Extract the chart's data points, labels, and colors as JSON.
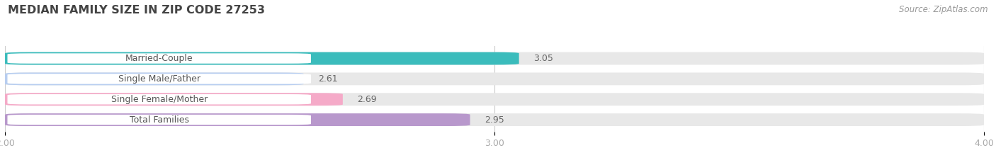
{
  "title": "MEDIAN FAMILY SIZE IN ZIP CODE 27253",
  "source": "Source: ZipAtlas.com",
  "categories": [
    "Married-Couple",
    "Single Male/Father",
    "Single Female/Mother",
    "Total Families"
  ],
  "values": [
    3.05,
    2.61,
    2.69,
    2.95
  ],
  "bar_colors": [
    "#3bbcbc",
    "#b8cef0",
    "#f5aac8",
    "#b898cc"
  ],
  "bar_bg_color": "#e8e8e8",
  "xlim": [
    2.0,
    4.0
  ],
  "xticks": [
    2.0,
    3.0,
    4.0
  ],
  "bar_height": 0.62,
  "label_fontsize": 9.0,
  "value_fontsize": 9.0,
  "title_fontsize": 11.5,
  "source_fontsize": 8.5,
  "background_color": "#ffffff",
  "tick_color": "#aaaaaa",
  "label_color": "#555555",
  "value_color": "#666666",
  "pill_bg": "#ffffff",
  "grid_color": "#cccccc"
}
